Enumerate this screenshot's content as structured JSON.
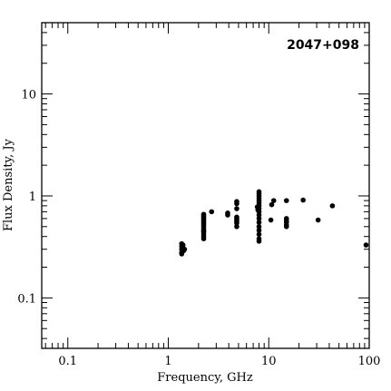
{
  "chart_data": {
    "type": "scatter",
    "title": "2047+098",
    "xlabel": "Frequency, GHz",
    "ylabel": "Flux Density, Jy",
    "xscale": "log",
    "yscale": "log",
    "xlim": [
      0.055,
      100
    ],
    "ylim": [
      0.032,
      50
    ],
    "x_tick_labels": [
      {
        "value": 0.1,
        "label": "0.1"
      },
      {
        "value": 1,
        "label": "1"
      },
      {
        "value": 10,
        "label": "10"
      },
      {
        "value": 100,
        "label": "100"
      }
    ],
    "y_tick_labels": [
      {
        "value": 0.1,
        "label": "0.1"
      },
      {
        "value": 1,
        "label": "1"
      },
      {
        "value": 10,
        "label": "10"
      }
    ],
    "grid": false,
    "legend": "none",
    "points": [
      {
        "x": 1.36,
        "y": 0.34
      },
      {
        "x": 1.36,
        "y": 0.32
      },
      {
        "x": 1.36,
        "y": 0.3
      },
      {
        "x": 1.36,
        "y": 0.28
      },
      {
        "x": 1.36,
        "y": 0.27
      },
      {
        "x": 1.4,
        "y": 0.33
      },
      {
        "x": 1.4,
        "y": 0.31
      },
      {
        "x": 1.42,
        "y": 0.29
      },
      {
        "x": 1.45,
        "y": 0.3
      },
      {
        "x": 2.25,
        "y": 0.66
      },
      {
        "x": 2.25,
        "y": 0.64
      },
      {
        "x": 2.25,
        "y": 0.62
      },
      {
        "x": 2.25,
        "y": 0.6
      },
      {
        "x": 2.25,
        "y": 0.58
      },
      {
        "x": 2.25,
        "y": 0.56
      },
      {
        "x": 2.25,
        "y": 0.54
      },
      {
        "x": 2.25,
        "y": 0.52
      },
      {
        "x": 2.25,
        "y": 0.5
      },
      {
        "x": 2.25,
        "y": 0.48
      },
      {
        "x": 2.25,
        "y": 0.46
      },
      {
        "x": 2.25,
        "y": 0.44
      },
      {
        "x": 2.25,
        "y": 0.42
      },
      {
        "x": 2.25,
        "y": 0.4
      },
      {
        "x": 2.25,
        "y": 0.38
      },
      {
        "x": 2.25,
        "y": 0.45
      },
      {
        "x": 2.7,
        "y": 0.7
      },
      {
        "x": 3.9,
        "y": 0.68
      },
      {
        "x": 3.9,
        "y": 0.65
      },
      {
        "x": 4.8,
        "y": 0.88
      },
      {
        "x": 4.8,
        "y": 0.84
      },
      {
        "x": 4.8,
        "y": 0.75
      },
      {
        "x": 4.8,
        "y": 0.62
      },
      {
        "x": 4.8,
        "y": 0.6
      },
      {
        "x": 4.8,
        "y": 0.58
      },
      {
        "x": 4.8,
        "y": 0.56
      },
      {
        "x": 4.8,
        "y": 0.54
      },
      {
        "x": 4.8,
        "y": 0.5
      },
      {
        "x": 7.7,
        "y": 0.78
      },
      {
        "x": 7.8,
        "y": 0.73
      },
      {
        "x": 8.0,
        "y": 1.1
      },
      {
        "x": 8.0,
        "y": 1.05
      },
      {
        "x": 8.0,
        "y": 1.0
      },
      {
        "x": 8.0,
        "y": 0.95
      },
      {
        "x": 8.0,
        "y": 0.9
      },
      {
        "x": 8.0,
        "y": 0.85
      },
      {
        "x": 8.0,
        "y": 0.8
      },
      {
        "x": 8.0,
        "y": 0.75
      },
      {
        "x": 8.0,
        "y": 0.7
      },
      {
        "x": 8.0,
        "y": 0.65
      },
      {
        "x": 8.0,
        "y": 0.6
      },
      {
        "x": 8.0,
        "y": 0.55
      },
      {
        "x": 8.0,
        "y": 0.5
      },
      {
        "x": 8.0,
        "y": 0.46
      },
      {
        "x": 8.0,
        "y": 0.42
      },
      {
        "x": 8.0,
        "y": 0.38
      },
      {
        "x": 8.0,
        "y": 0.36
      },
      {
        "x": 10.5,
        "y": 0.58
      },
      {
        "x": 10.7,
        "y": 0.82
      },
      {
        "x": 11.2,
        "y": 0.9
      },
      {
        "x": 15.0,
        "y": 0.9
      },
      {
        "x": 15.0,
        "y": 0.6
      },
      {
        "x": 15.0,
        "y": 0.57
      },
      {
        "x": 15.0,
        "y": 0.55
      },
      {
        "x": 15.0,
        "y": 0.52
      },
      {
        "x": 15.0,
        "y": 0.5
      },
      {
        "x": 22.0,
        "y": 0.91
      },
      {
        "x": 31.0,
        "y": 0.58
      },
      {
        "x": 43.0,
        "y": 0.8
      },
      {
        "x": 93.0,
        "y": 0.33
      }
    ]
  }
}
